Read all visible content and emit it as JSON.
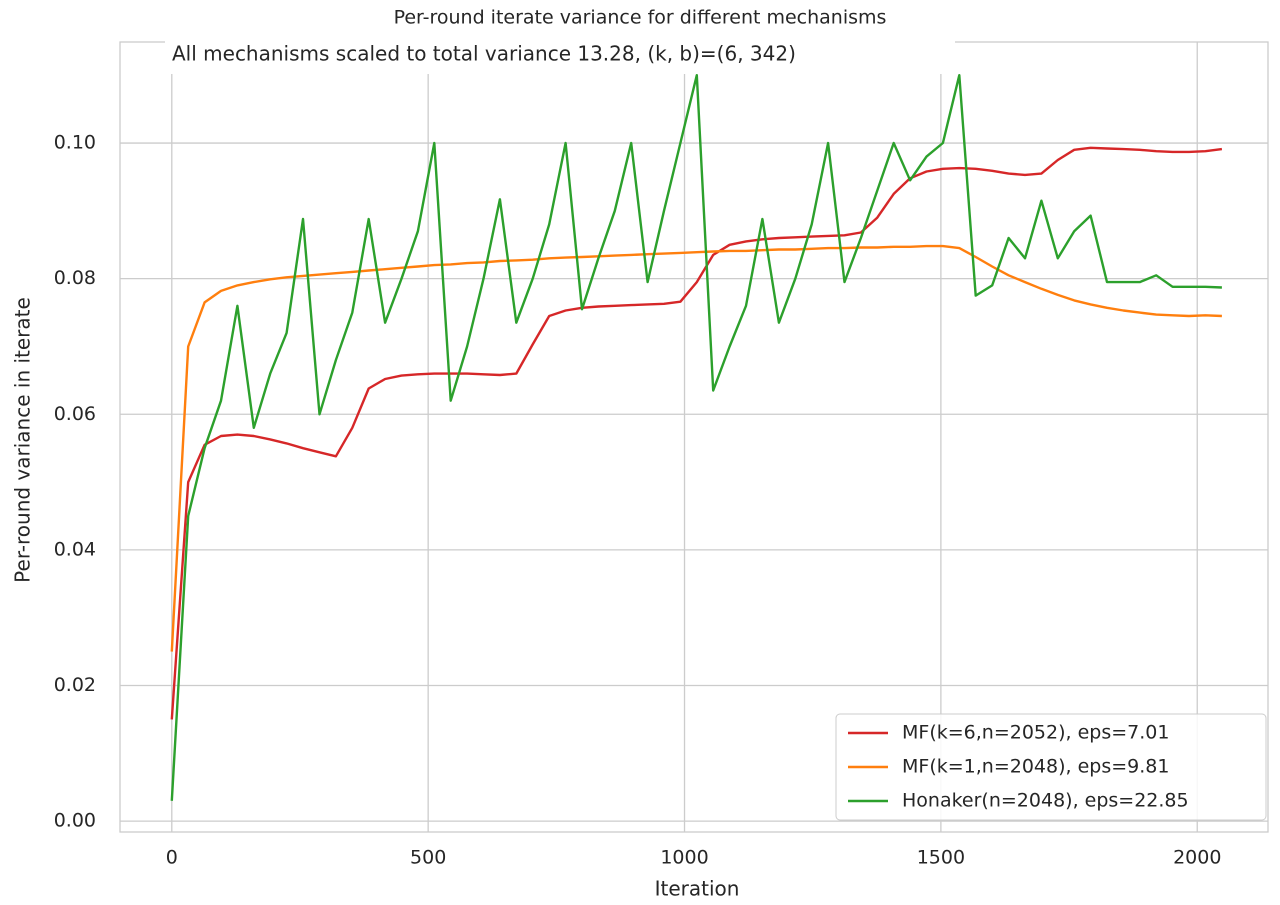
{
  "chart_data": {
    "type": "line",
    "title": "Per-round iterate variance for different mechanisms",
    "subtitle": "All mechanisms scaled to total variance 13.28, (k, b)=(6, 342)",
    "x_label": "Iteration",
    "y_label": "Per-round variance in iterate",
    "x": [
      0,
      32,
      64,
      96,
      128,
      160,
      192,
      224,
      256,
      288,
      320,
      352,
      384,
      416,
      448,
      480,
      512,
      544,
      576,
      608,
      640,
      672,
      704,
      736,
      768,
      800,
      832,
      864,
      896,
      928,
      960,
      992,
      1024,
      1056,
      1088,
      1120,
      1152,
      1184,
      1216,
      1248,
      1280,
      1312,
      1344,
      1376,
      1408,
      1440,
      1472,
      1504,
      1536,
      1568,
      1600,
      1632,
      1664,
      1696,
      1728,
      1760,
      1792,
      1824,
      1856,
      1888,
      1920,
      1952,
      1984,
      2016,
      2048
    ],
    "series": [
      {
        "name": "MF(k=6,n=2052), eps=7.01",
        "color": "#d62728",
        "values": [
          0.015,
          0.05,
          0.0555,
          0.0568,
          0.057,
          0.0568,
          0.0563,
          0.0557,
          0.055,
          0.0544,
          0.0538,
          0.058,
          0.0638,
          0.0652,
          0.0657,
          0.0659,
          0.066,
          0.066,
          0.066,
          0.0659,
          0.0658,
          0.066,
          0.0703,
          0.0745,
          0.0753,
          0.0757,
          0.0759,
          0.076,
          0.0761,
          0.0762,
          0.0763,
          0.0766,
          0.0795,
          0.0835,
          0.085,
          0.0855,
          0.0858,
          0.086,
          0.0861,
          0.0862,
          0.0863,
          0.0864,
          0.0868,
          0.089,
          0.0925,
          0.0948,
          0.0958,
          0.0962,
          0.0963,
          0.0962,
          0.0959,
          0.0955,
          0.0953,
          0.0955,
          0.0975,
          0.099,
          0.0993,
          0.0992,
          0.0991,
          0.099,
          0.0988,
          0.0987,
          0.0987,
          0.0988,
          0.0991
        ]
      },
      {
        "name": "MF(k=1,n=2048), eps=9.81",
        "color": "#ff7f0e",
        "values": [
          0.025,
          0.07,
          0.0765,
          0.0782,
          0.079,
          0.0795,
          0.0799,
          0.0802,
          0.0804,
          0.0806,
          0.0808,
          0.081,
          0.0812,
          0.0814,
          0.0816,
          0.0818,
          0.082,
          0.0821,
          0.0823,
          0.0824,
          0.0826,
          0.0827,
          0.0828,
          0.083,
          0.0831,
          0.0832,
          0.0833,
          0.0834,
          0.0835,
          0.0836,
          0.0837,
          0.0838,
          0.0839,
          0.084,
          0.0841,
          0.0841,
          0.0842,
          0.0843,
          0.0843,
          0.0844,
          0.0845,
          0.0845,
          0.0846,
          0.0846,
          0.0847,
          0.0847,
          0.0848,
          0.0848,
          0.0845,
          0.0832,
          0.0818,
          0.0805,
          0.0795,
          0.0785,
          0.0776,
          0.0768,
          0.0762,
          0.0757,
          0.0753,
          0.075,
          0.0747,
          0.0746,
          0.0745,
          0.0746,
          0.0745
        ]
      },
      {
        "name": "Honaker(n=2048), eps=22.85",
        "color": "#2ca02c",
        "values": [
          0.003,
          0.045,
          0.055,
          0.062,
          0.076,
          0.058,
          0.066,
          0.072,
          0.0888,
          0.06,
          0.068,
          0.075,
          0.0888,
          0.0735,
          0.08,
          0.087,
          0.1,
          0.062,
          0.07,
          0.08,
          0.0917,
          0.0735,
          0.08,
          0.088,
          0.1,
          0.0755,
          0.083,
          0.09,
          0.1,
          0.0795,
          0.09,
          0.1,
          0.11,
          0.0635,
          0.07,
          0.076,
          0.0888,
          0.0735,
          0.08,
          0.088,
          0.1,
          0.0795,
          0.086,
          0.093,
          0.1,
          0.0945,
          0.098,
          0.1,
          0.11,
          0.0775,
          0.079,
          0.086,
          0.083,
          0.0915,
          0.083,
          0.087,
          0.0893,
          0.0795,
          0.0795,
          0.0795,
          0.0805,
          0.0788,
          0.0788,
          0.0788,
          0.0787
        ]
      }
    ],
    "xlim": [
      -101,
      2138
    ],
    "ylim": [
      -0.0016,
      0.1149
    ],
    "xticks": [
      0,
      500,
      1000,
      1500,
      2000
    ],
    "yticks": [
      {
        "value": 0,
        "label": "0.00"
      },
      {
        "value": 0.02,
        "label": "0.02"
      },
      {
        "value": 0.04,
        "label": "0.04"
      },
      {
        "value": 0.06,
        "label": "0.06"
      },
      {
        "value": 0.08,
        "label": "0.08"
      },
      {
        "value": 0.1,
        "label": "0.10"
      }
    ],
    "grid": true,
    "legend": "lower right"
  }
}
